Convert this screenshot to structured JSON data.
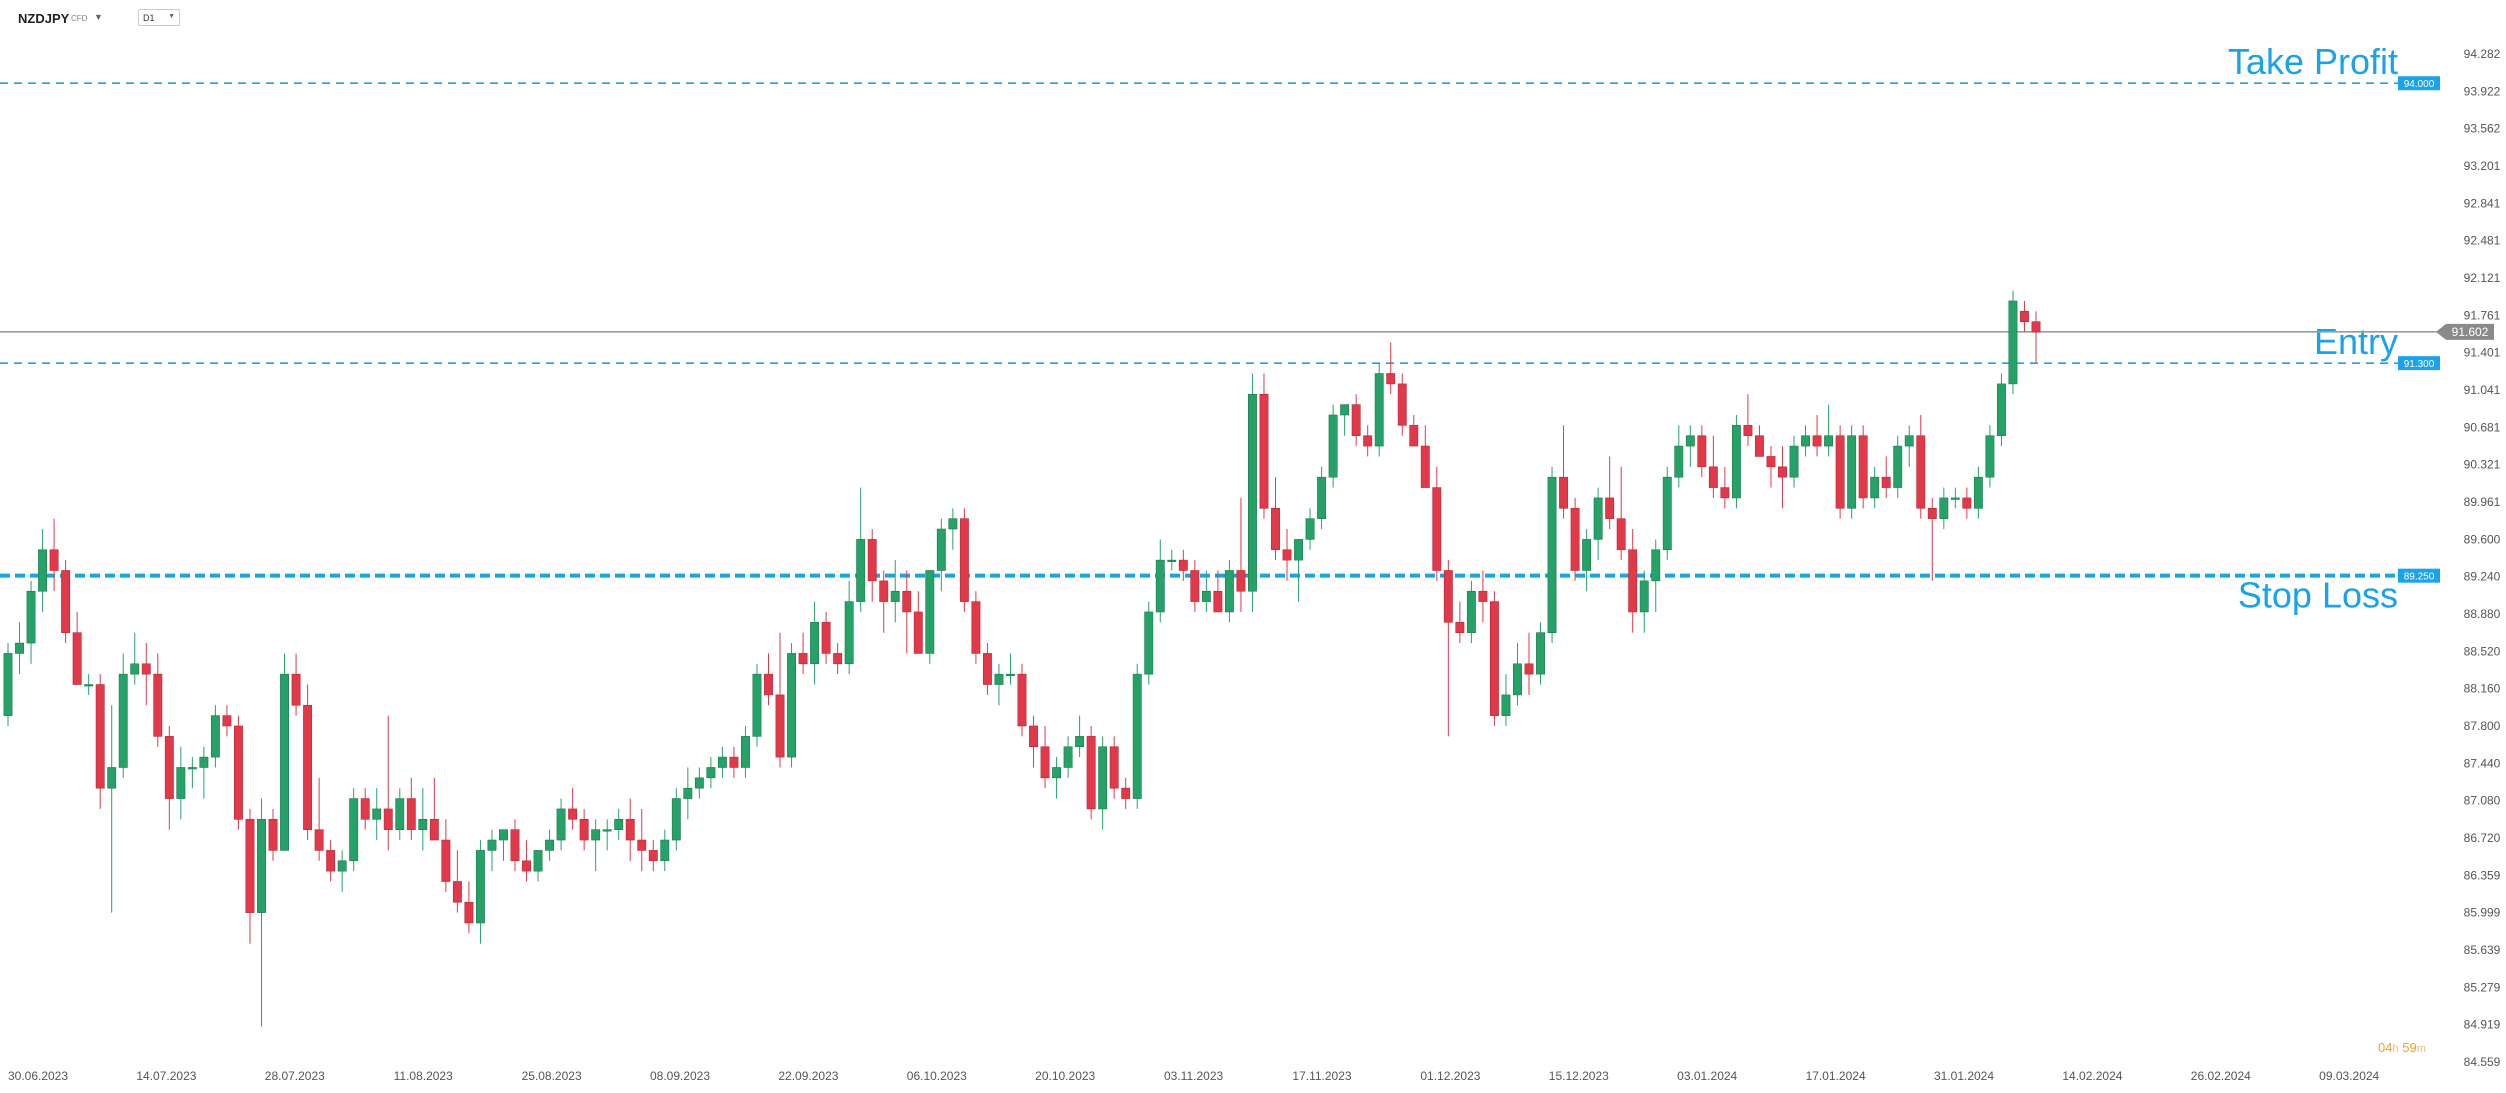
{
  "header": {
    "symbol": "NZDJPY",
    "symbol_type": "CFD",
    "timeframe": "D1"
  },
  "countdown": {
    "hours": "04",
    "hours_unit": "h",
    "minutes": "59",
    "minutes_unit": "m"
  },
  "colors": {
    "up": "#26a269",
    "down": "#e0394a",
    "level_line": "#1aa3e8",
    "price_line": "#9a9a9a",
    "axis_text": "#555555"
  },
  "chart_data": {
    "type": "candlestick",
    "symbol": "NZDJPY",
    "timeframe": "D1",
    "ylim": [
      84.559,
      94.282
    ],
    "y_ticks": [
      "94.282",
      "93.922",
      "93.562",
      "93.201",
      "92.841",
      "92.481",
      "92.121",
      "91.761",
      "91.401",
      "91.041",
      "90.681",
      "90.321",
      "89.961",
      "89.600",
      "89.240",
      "88.880",
      "88.520",
      "88.160",
      "87.800",
      "87.440",
      "87.080",
      "86.720",
      "86.359",
      "85.999",
      "85.639",
      "85.279",
      "84.919",
      "84.559"
    ],
    "x_ticks": [
      "30.06.2023",
      "14.07.2023",
      "28.07.2023",
      "11.08.2023",
      "25.08.2023",
      "08.09.2023",
      "22.09.2023",
      "06.10.2023",
      "20.10.2023",
      "03.11.2023",
      "17.11.2023",
      "01.12.2023",
      "15.12.2023",
      "03.01.2024",
      "17.01.2024",
      "31.01.2024",
      "14.02.2024",
      "26.02.2024",
      "09.03.2024"
    ],
    "current_price": "91.602",
    "levels": [
      {
        "name": "Take Profit",
        "price": 94.0,
        "label": "94.000"
      },
      {
        "name": "Entry",
        "price": 91.3,
        "label": "91.300"
      },
      {
        "name": "Stop Loss",
        "price": 89.25,
        "label": "89.250"
      }
    ],
    "grid": false,
    "candles_ohlc": [
      [
        87.9,
        88.6,
        87.8,
        88.5
      ],
      [
        88.5,
        88.8,
        88.3,
        88.6
      ],
      [
        88.6,
        89.2,
        88.4,
        89.1
      ],
      [
        89.1,
        89.7,
        88.9,
        89.5
      ],
      [
        89.5,
        89.8,
        89.1,
        89.3
      ],
      [
        89.3,
        89.4,
        88.6,
        88.7
      ],
      [
        88.7,
        88.9,
        88.2,
        88.2
      ],
      [
        88.2,
        88.3,
        88.1,
        88.2
      ],
      [
        88.2,
        88.3,
        87.0,
        87.2
      ],
      [
        87.2,
        88.0,
        86.0,
        87.4
      ],
      [
        87.4,
        88.5,
        87.3,
        88.3
      ],
      [
        88.3,
        88.7,
        88.2,
        88.4
      ],
      [
        88.4,
        88.6,
        88.0,
        88.3
      ],
      [
        88.3,
        88.5,
        87.6,
        87.7
      ],
      [
        87.7,
        87.8,
        86.8,
        87.1
      ],
      [
        87.1,
        87.6,
        86.9,
        87.4
      ],
      [
        87.4,
        87.5,
        87.2,
        87.4
      ],
      [
        87.4,
        87.6,
        87.1,
        87.5
      ],
      [
        87.5,
        88.0,
        87.4,
        87.9
      ],
      [
        87.9,
        88.0,
        87.7,
        87.8
      ],
      [
        87.8,
        87.9,
        86.8,
        86.9
      ],
      [
        86.9,
        87.0,
        85.7,
        86.0
      ],
      [
        86.0,
        87.1,
        84.9,
        86.9
      ],
      [
        86.9,
        87.0,
        86.5,
        86.6
      ],
      [
        86.6,
        88.5,
        86.6,
        88.3
      ],
      [
        88.3,
        88.5,
        87.9,
        88.0
      ],
      [
        88.0,
        88.2,
        86.7,
        86.8
      ],
      [
        86.8,
        87.3,
        86.5,
        86.6
      ],
      [
        86.6,
        86.7,
        86.3,
        86.4
      ],
      [
        86.4,
        86.6,
        86.2,
        86.5
      ],
      [
        86.5,
        87.2,
        86.4,
        87.1
      ],
      [
        87.1,
        87.2,
        86.8,
        86.9
      ],
      [
        86.9,
        87.2,
        86.7,
        87.0
      ],
      [
        87.0,
        87.9,
        86.6,
        86.8
      ],
      [
        86.8,
        87.2,
        86.7,
        87.1
      ],
      [
        87.1,
        87.3,
        86.7,
        86.8
      ],
      [
        86.8,
        87.2,
        86.6,
        86.9
      ],
      [
        86.9,
        87.3,
        86.7,
        86.7
      ],
      [
        86.7,
        86.9,
        86.2,
        86.3
      ],
      [
        86.3,
        86.6,
        86.0,
        86.1
      ],
      [
        86.1,
        86.3,
        85.8,
        85.9
      ],
      [
        85.9,
        86.7,
        85.7,
        86.6
      ],
      [
        86.6,
        86.8,
        86.4,
        86.7
      ],
      [
        86.7,
        86.8,
        86.5,
        86.8
      ],
      [
        86.8,
        86.9,
        86.4,
        86.5
      ],
      [
        86.5,
        86.7,
        86.3,
        86.4
      ],
      [
        86.4,
        86.6,
        86.3,
        86.6
      ],
      [
        86.6,
        86.8,
        86.5,
        86.7
      ],
      [
        86.7,
        87.1,
        86.6,
        87.0
      ],
      [
        87.0,
        87.2,
        86.8,
        86.9
      ],
      [
        86.9,
        87.0,
        86.6,
        86.7
      ],
      [
        86.7,
        86.9,
        86.4,
        86.8
      ],
      [
        86.8,
        86.9,
        86.6,
        86.8
      ],
      [
        86.8,
        87.0,
        86.7,
        86.9
      ],
      [
        86.9,
        87.1,
        86.5,
        86.7
      ],
      [
        86.7,
        87.0,
        86.4,
        86.6
      ],
      [
        86.6,
        86.7,
        86.4,
        86.5
      ],
      [
        86.5,
        86.8,
        86.4,
        86.7
      ],
      [
        86.7,
        87.2,
        86.6,
        87.1
      ],
      [
        87.1,
        87.4,
        86.9,
        87.2
      ],
      [
        87.2,
        87.4,
        87.1,
        87.3
      ],
      [
        87.3,
        87.5,
        87.2,
        87.4
      ],
      [
        87.4,
        87.6,
        87.3,
        87.5
      ],
      [
        87.5,
        87.6,
        87.3,
        87.4
      ],
      [
        87.4,
        87.8,
        87.3,
        87.7
      ],
      [
        87.7,
        88.4,
        87.6,
        88.3
      ],
      [
        88.3,
        88.5,
        88.0,
        88.1
      ],
      [
        88.1,
        88.7,
        87.4,
        87.5
      ],
      [
        87.5,
        88.6,
        87.4,
        88.5
      ],
      [
        88.5,
        88.7,
        88.3,
        88.4
      ],
      [
        88.4,
        89.0,
        88.2,
        88.8
      ],
      [
        88.8,
        88.9,
        88.4,
        88.5
      ],
      [
        88.5,
        88.6,
        88.3,
        88.4
      ],
      [
        88.4,
        89.2,
        88.3,
        89.0
      ],
      [
        89.0,
        90.1,
        88.9,
        89.6
      ],
      [
        89.6,
        89.7,
        89.0,
        89.2
      ],
      [
        89.2,
        89.3,
        88.7,
        89.0
      ],
      [
        89.0,
        89.4,
        88.8,
        89.1
      ],
      [
        89.1,
        89.3,
        88.5,
        88.9
      ],
      [
        88.9,
        89.1,
        88.7,
        88.5
      ],
      [
        88.5,
        89.3,
        88.4,
        89.3
      ],
      [
        89.3,
        89.8,
        89.1,
        89.7
      ],
      [
        89.7,
        89.9,
        89.5,
        89.8
      ],
      [
        89.8,
        89.9,
        88.9,
        89.0
      ],
      [
        89.0,
        89.1,
        88.4,
        88.5
      ],
      [
        88.5,
        88.6,
        88.1,
        88.2
      ],
      [
        88.2,
        88.4,
        88.0,
        88.3
      ],
      [
        88.3,
        88.5,
        88.2,
        88.3
      ],
      [
        88.3,
        88.4,
        87.7,
        87.8
      ],
      [
        87.8,
        87.9,
        87.4,
        87.6
      ],
      [
        87.6,
        87.8,
        87.2,
        87.3
      ],
      [
        87.3,
        87.5,
        87.1,
        87.4
      ],
      [
        87.4,
        87.7,
        87.3,
        87.6
      ],
      [
        87.6,
        87.9,
        87.5,
        87.7
      ],
      [
        87.7,
        87.8,
        86.9,
        87.0
      ],
      [
        87.0,
        87.7,
        86.8,
        87.6
      ],
      [
        87.6,
        87.7,
        87.1,
        87.2
      ],
      [
        87.2,
        87.3,
        87.0,
        87.1
      ],
      [
        87.1,
        88.4,
        87.0,
        88.3
      ],
      [
        88.3,
        89.0,
        88.2,
        88.9
      ],
      [
        88.9,
        89.6,
        88.8,
        89.4
      ],
      [
        89.4,
        89.5,
        89.3,
        89.4
      ],
      [
        89.4,
        89.5,
        89.2,
        89.3
      ],
      [
        89.3,
        89.4,
        88.9,
        89.0
      ],
      [
        89.0,
        89.3,
        88.9,
        89.1
      ],
      [
        89.1,
        89.3,
        88.9,
        88.9
      ],
      [
        88.9,
        89.4,
        88.8,
        89.3
      ],
      [
        89.3,
        90.0,
        88.9,
        89.1
      ],
      [
        89.1,
        91.2,
        88.9,
        91.0
      ],
      [
        91.0,
        91.2,
        89.8,
        89.9
      ],
      [
        89.9,
        90.2,
        89.4,
        89.5
      ],
      [
        89.5,
        89.7,
        89.2,
        89.4
      ],
      [
        89.4,
        89.6,
        89.0,
        89.6
      ],
      [
        89.6,
        89.9,
        89.5,
        89.8
      ],
      [
        89.8,
        90.3,
        89.7,
        90.2
      ],
      [
        90.2,
        90.9,
        90.1,
        90.8
      ],
      [
        90.8,
        90.9,
        90.6,
        90.9
      ],
      [
        90.9,
        91.0,
        90.5,
        90.6
      ],
      [
        90.6,
        90.7,
        90.4,
        90.5
      ],
      [
        90.5,
        91.3,
        90.4,
        91.2
      ],
      [
        91.2,
        91.5,
        91.0,
        91.1
      ],
      [
        91.1,
        91.2,
        90.6,
        90.7
      ],
      [
        90.7,
        90.8,
        90.5,
        90.5
      ],
      [
        90.5,
        90.7,
        90.3,
        90.1
      ],
      [
        90.1,
        90.3,
        89.2,
        89.3
      ],
      [
        89.3,
        89.4,
        87.7,
        88.8
      ],
      [
        88.8,
        89.0,
        88.6,
        88.7
      ],
      [
        88.7,
        89.2,
        88.6,
        89.1
      ],
      [
        89.1,
        89.3,
        88.8,
        89.0
      ],
      [
        89.0,
        89.1,
        87.8,
        87.9
      ],
      [
        87.9,
        88.3,
        87.8,
        88.1
      ],
      [
        88.1,
        88.6,
        88.0,
        88.4
      ],
      [
        88.4,
        88.7,
        88.1,
        88.3
      ],
      [
        88.3,
        88.8,
        88.2,
        88.7
      ],
      [
        88.7,
        90.3,
        88.6,
        90.2
      ],
      [
        90.2,
        90.7,
        89.8,
        89.9
      ],
      [
        89.9,
        90.0,
        89.2,
        89.3
      ],
      [
        89.3,
        89.7,
        89.1,
        89.6
      ],
      [
        89.6,
        90.1,
        89.4,
        90.0
      ],
      [
        90.0,
        90.4,
        89.7,
        89.8
      ],
      [
        89.8,
        90.3,
        89.4,
        89.5
      ],
      [
        89.5,
        89.7,
        88.7,
        88.9
      ],
      [
        88.9,
        89.3,
        88.7,
        89.2
      ],
      [
        89.2,
        89.6,
        88.9,
        89.5
      ],
      [
        89.5,
        90.3,
        89.4,
        90.2
      ],
      [
        90.2,
        90.7,
        90.1,
        90.5
      ],
      [
        90.5,
        90.7,
        90.3,
        90.6
      ],
      [
        90.6,
        90.7,
        90.2,
        90.3
      ],
      [
        90.3,
        90.6,
        90.0,
        90.1
      ],
      [
        90.1,
        90.3,
        89.9,
        90.0
      ],
      [
        90.0,
        90.8,
        89.9,
        90.7
      ],
      [
        90.7,
        91.0,
        90.5,
        90.6
      ],
      [
        90.6,
        90.7,
        90.4,
        90.4
      ],
      [
        90.4,
        90.5,
        90.1,
        90.3
      ],
      [
        90.3,
        90.5,
        89.9,
        90.2
      ],
      [
        90.2,
        90.6,
        90.1,
        90.5
      ],
      [
        90.5,
        90.7,
        90.4,
        90.6
      ],
      [
        90.6,
        90.8,
        90.4,
        90.5
      ],
      [
        90.5,
        90.9,
        90.4,
        90.6
      ],
      [
        90.6,
        90.7,
        89.8,
        89.9
      ],
      [
        89.9,
        90.7,
        89.8,
        90.6
      ],
      [
        90.6,
        90.7,
        89.9,
        90.0
      ],
      [
        90.0,
        90.3,
        89.9,
        90.2
      ],
      [
        90.2,
        90.4,
        90.0,
        90.1
      ],
      [
        90.1,
        90.6,
        90.0,
        90.5
      ],
      [
        90.5,
        90.7,
        90.3,
        90.6
      ],
      [
        90.6,
        90.8,
        89.8,
        89.9
      ],
      [
        89.9,
        90.0,
        89.2,
        89.8
      ],
      [
        89.8,
        90.1,
        89.7,
        90.0
      ],
      [
        90.0,
        90.1,
        89.9,
        90.0
      ],
      [
        90.0,
        90.1,
        89.8,
        89.9
      ],
      [
        89.9,
        90.3,
        89.8,
        90.2
      ],
      [
        90.2,
        90.7,
        90.1,
        90.6
      ],
      [
        90.6,
        91.2,
        90.5,
        91.1
      ],
      [
        91.1,
        92.0,
        91.0,
        91.9
      ],
      [
        91.8,
        91.9,
        91.6,
        91.7
      ],
      [
        91.7,
        91.8,
        91.3,
        91.6
      ]
    ]
  }
}
